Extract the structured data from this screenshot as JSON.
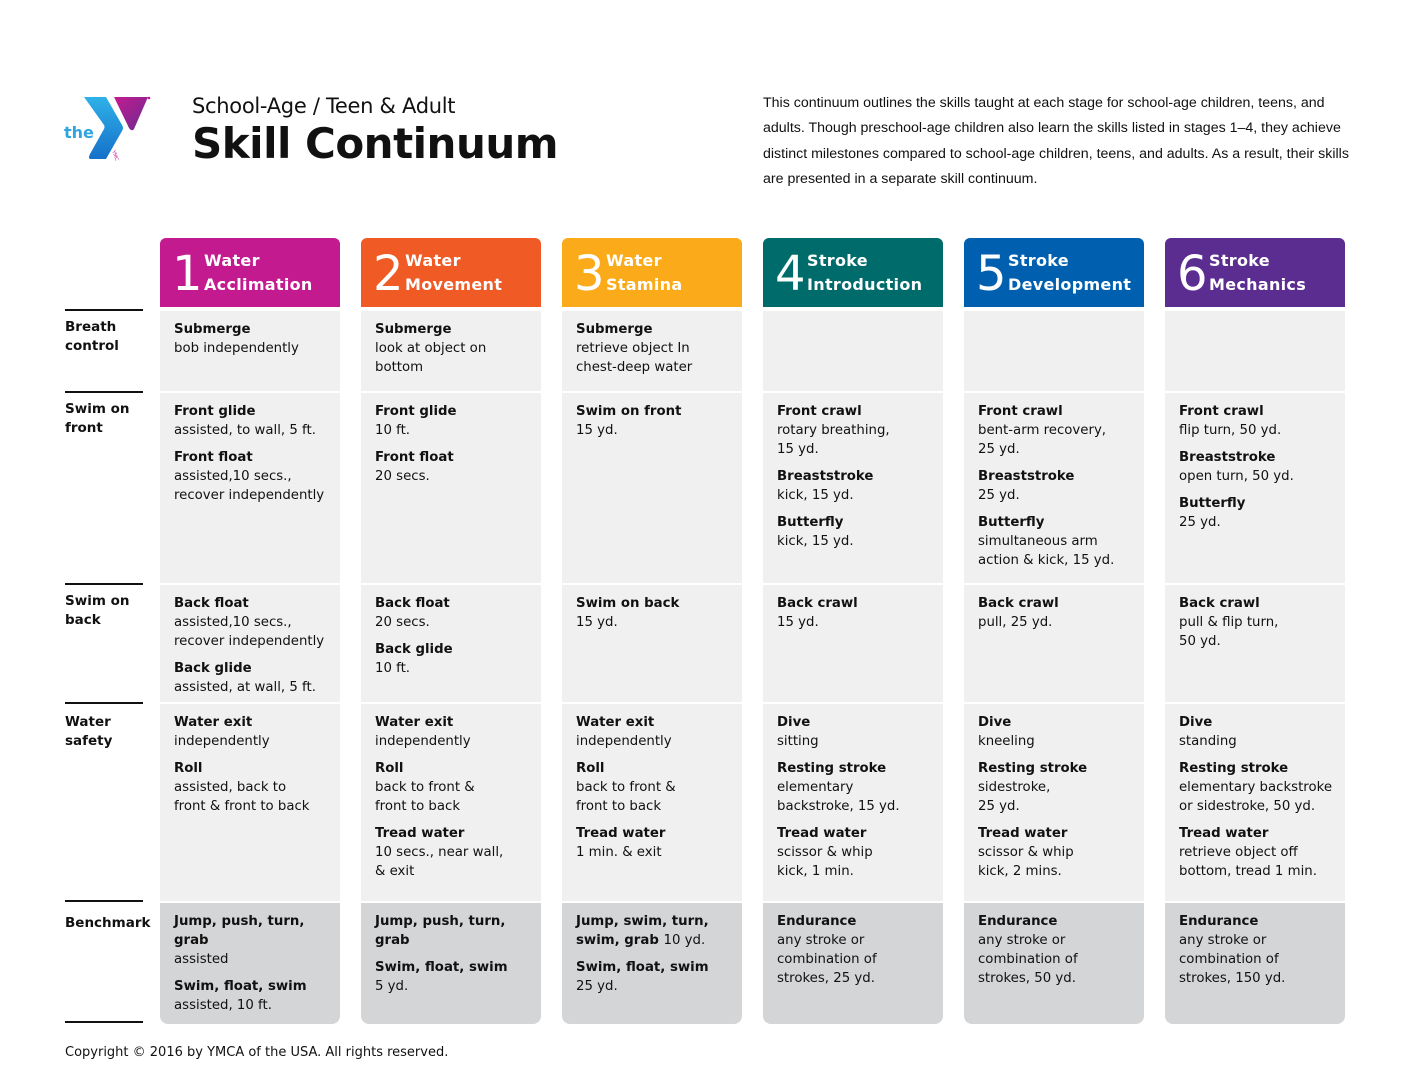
{
  "header": {
    "logo_text": "the",
    "logo_mark": "YMCA",
    "subtitle": "School-Age / Teen & Adult",
    "title": "Skill Continuum",
    "intro": "This continuum outlines the skills taught at each stage for school-age children, teens, and adults. Though preschool-age children also learn the skills listed in stages 1–4, they achieve distinct milestones compared to school-age children, teens, and adults. As a result, their skills are presented in a separate skill continuum."
  },
  "row_labels": [
    {
      "label": "Breath\ncontrol"
    },
    {
      "label": "Swim on\nfront"
    },
    {
      "label": "Swim on\nback"
    },
    {
      "label": "Water\nsafety"
    },
    {
      "label": "Benchmark"
    }
  ],
  "stages": [
    {
      "number": "1",
      "name": "Water\nAcclimation",
      "color": "#c41a8f",
      "cells": [
        [
          {
            "title": "Submerge",
            "desc": "bob independently"
          }
        ],
        [
          {
            "title": "Front glide",
            "desc": "assisted, to wall, 5 ft."
          },
          {
            "title": "Front float",
            "desc": "assisted,10 secs.,\nrecover independently"
          }
        ],
        [
          {
            "title": "Back float",
            "desc": "assisted,10 secs.,\nrecover independently"
          },
          {
            "title": "Back glide",
            "desc": "assisted, at wall, 5 ft."
          }
        ],
        [
          {
            "title": "Water exit",
            "desc": "independently"
          },
          {
            "title": "Roll",
            "desc": "assisted, back to\nfront & front to back"
          }
        ],
        [
          {
            "title": "Jump, push, turn, grab",
            "desc": "assisted"
          },
          {
            "title": "Swim, float, swim",
            "desc": "assisted, 10 ft."
          }
        ]
      ]
    },
    {
      "number": "2",
      "name": "Water\nMovement",
      "color": "#f05a24",
      "cells": [
        [
          {
            "title": "Submerge",
            "desc": "look at object on\nbottom"
          }
        ],
        [
          {
            "title": "Front glide",
            "desc": "10 ft."
          },
          {
            "title": "Front float",
            "desc": "20 secs."
          }
        ],
        [
          {
            "title": "Back float",
            "desc": "20 secs."
          },
          {
            "title": "Back glide",
            "desc": "10 ft."
          }
        ],
        [
          {
            "title": "Water exit",
            "desc": "independently"
          },
          {
            "title": "Roll",
            "desc": "back to front &\nfront to back"
          },
          {
            "title": "Tread water",
            "desc": "10 secs., near wall,\n& exit"
          }
        ],
        [
          {
            "title": "Jump, push, turn,\ngrab",
            "desc": ""
          },
          {
            "title": "Swim, float, swim",
            "desc": "5 yd."
          }
        ]
      ]
    },
    {
      "number": "3",
      "name": "Water\nStamina",
      "color": "#fbaa19",
      "cells": [
        [
          {
            "title": "Submerge",
            "desc": "retrieve object In\nchest-deep water"
          }
        ],
        [
          {
            "title": "Swim on front",
            "desc": "15 yd."
          }
        ],
        [
          {
            "title": "Swim on back",
            "desc": "15 yd."
          }
        ],
        [
          {
            "title": "Water exit",
            "desc": "independently"
          },
          {
            "title": "Roll",
            "desc": "back to front &\nfront to back"
          },
          {
            "title": "Tread water",
            "desc": "1 min. & exit"
          }
        ],
        [
          {
            "title": "Jump, swim, turn,\nswim, grab",
            "inline": "10 yd.",
            "desc": ""
          },
          {
            "title": "Swim, float, swim",
            "desc": "25 yd."
          }
        ]
      ]
    },
    {
      "number": "4",
      "name": "Stroke\nIntroduction",
      "color": "#006b6b",
      "cells": [
        [],
        [
          {
            "title": "Front crawl",
            "desc": "rotary breathing,\n15 yd."
          },
          {
            "title": "Breaststroke",
            "desc": "kick, 15 yd."
          },
          {
            "title": "Butterfly",
            "desc": "kick, 15 yd."
          }
        ],
        [
          {
            "title": "Back crawl",
            "desc": "15 yd."
          }
        ],
        [
          {
            "title": "Dive",
            "desc": "sitting"
          },
          {
            "title": "Resting stroke",
            "desc": "elementary\nbackstroke, 15 yd."
          },
          {
            "title": "Tread water",
            "desc": "scissor & whip\nkick, 1 min."
          }
        ],
        [
          {
            "title": "Endurance",
            "desc": "any stroke or\ncombination of\nstrokes, 25 yd."
          }
        ]
      ]
    },
    {
      "number": "5",
      "name": "Stroke\nDevelopment",
      "color": "#0060af",
      "cells": [
        [],
        [
          {
            "title": "Front crawl",
            "desc": "bent-arm recovery,\n25 yd."
          },
          {
            "title": "Breaststroke",
            "desc": "25 yd."
          },
          {
            "title": "Butterfly",
            "desc": "simultaneous arm\naction & kick, 15 yd."
          }
        ],
        [
          {
            "title": "Back crawl",
            "desc": "pull, 25 yd."
          }
        ],
        [
          {
            "title": "Dive",
            "desc": "kneeling"
          },
          {
            "title": "Resting stroke",
            "desc": "sidestroke,\n25 yd."
          },
          {
            "title": "Tread water",
            "desc": "scissor & whip\nkick, 2 mins."
          }
        ],
        [
          {
            "title": "Endurance",
            "desc": "any stroke or\ncombination of\nstrokes, 50 yd."
          }
        ]
      ]
    },
    {
      "number": "6",
      "name": "Stroke\nMechanics",
      "color": "#5c2d91",
      "cells": [
        [],
        [
          {
            "title": "Front crawl",
            "desc": "flip turn, 50 yd."
          },
          {
            "title": "Breaststroke",
            "desc": "open turn, 50 yd."
          },
          {
            "title": "Butterfly",
            "desc": "25 yd."
          }
        ],
        [
          {
            "title": "Back crawl",
            "desc": "pull & flip turn,\n50 yd."
          }
        ],
        [
          {
            "title": "Dive",
            "desc": "standing"
          },
          {
            "title": "Resting stroke",
            "desc": "elementary backstroke\nor sidestroke, 50 yd."
          },
          {
            "title": "Tread water",
            "desc": "retrieve object off\nbottom, tread 1 min."
          }
        ],
        [
          {
            "title": "Endurance",
            "desc": "any stroke or\ncombination of\nstrokes, 150 yd."
          }
        ]
      ]
    }
  ],
  "footer": {
    "copyright": "Copyright © 2016 by YMCA of the USA. All rights reserved."
  }
}
